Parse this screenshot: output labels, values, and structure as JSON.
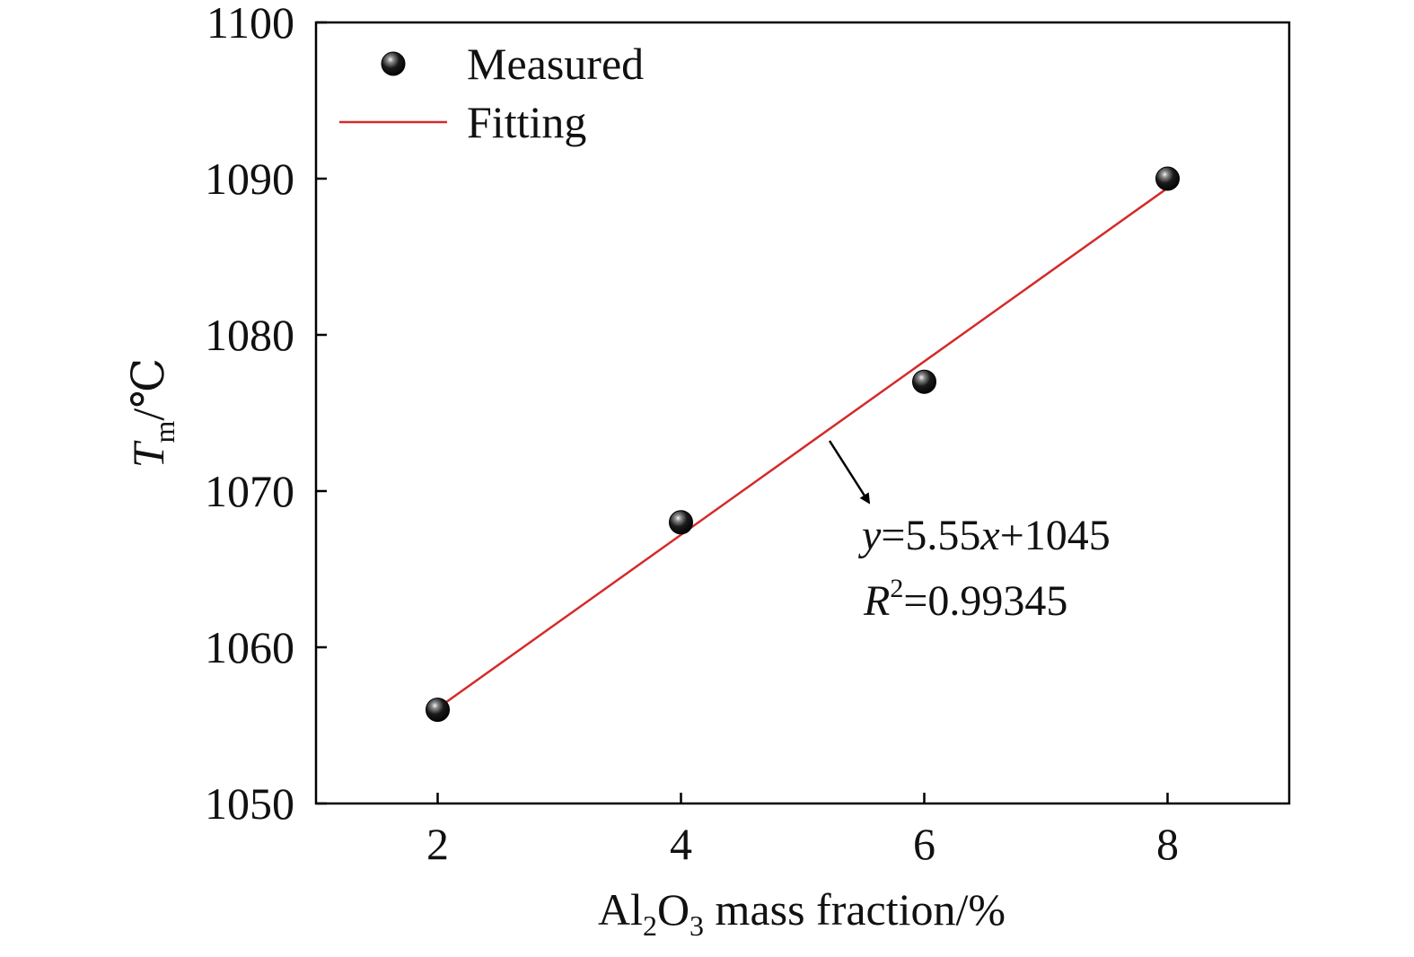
{
  "chart_data": {
    "type": "scatter",
    "xlim": [
      1,
      9
    ],
    "ylim": [
      1050,
      1100
    ],
    "x_ticks": [
      2,
      4,
      6,
      8
    ],
    "y_ticks": [
      1050,
      1060,
      1070,
      1080,
      1090,
      1100
    ],
    "xlabel": {
      "main": "Al",
      "sub1": "2",
      "mid": "O",
      "sub2": "3",
      "rest": " mass fraction/%"
    },
    "ylabel": {
      "main": "T",
      "sub": "m",
      "rest": "/℃"
    },
    "grid": false,
    "legend_position": "top-left",
    "series": [
      {
        "name": "Measured",
        "kind": "points",
        "x": [
          2,
          4,
          6,
          8
        ],
        "y": [
          1056,
          1068,
          1077,
          1090
        ],
        "color": "#000000"
      },
      {
        "name": "Fitting",
        "kind": "line",
        "slope": 5.55,
        "intercept": 1045,
        "x_range": [
          2,
          8
        ],
        "color": "#d42a2a"
      }
    ],
    "annotation": {
      "equation_y": "y",
      "equation_rest": "=5.55",
      "equation_x": "x",
      "equation_tail": "+1045",
      "r2_R": "R",
      "r2_sup": "2",
      "r2_rest": "=0.99345"
    }
  }
}
